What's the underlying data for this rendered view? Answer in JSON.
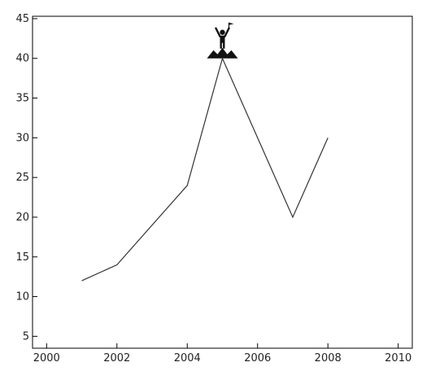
{
  "chart_data": {
    "type": "line",
    "title": "",
    "xlabel": "",
    "ylabel": "",
    "xlim": [
      1999.6,
      2010.4
    ],
    "ylim": [
      3.5,
      45.3
    ],
    "x_ticks": [
      2000,
      2002,
      2004,
      2006,
      2008,
      2010
    ],
    "y_ticks": [
      5,
      10,
      15,
      20,
      25,
      30,
      35,
      40,
      45
    ],
    "grid": false,
    "legend": "none",
    "series": [
      {
        "x": [
          2001,
          2002,
          2004,
          2005,
          2007,
          2008
        ],
        "y": [
          12,
          14,
          24,
          40,
          20,
          30
        ],
        "color": "#333333"
      }
    ],
    "annotations": [
      {
        "type": "icon",
        "icon": "person-on-summit-with-flag-icon",
        "x": 2005,
        "y": 40
      }
    ]
  }
}
